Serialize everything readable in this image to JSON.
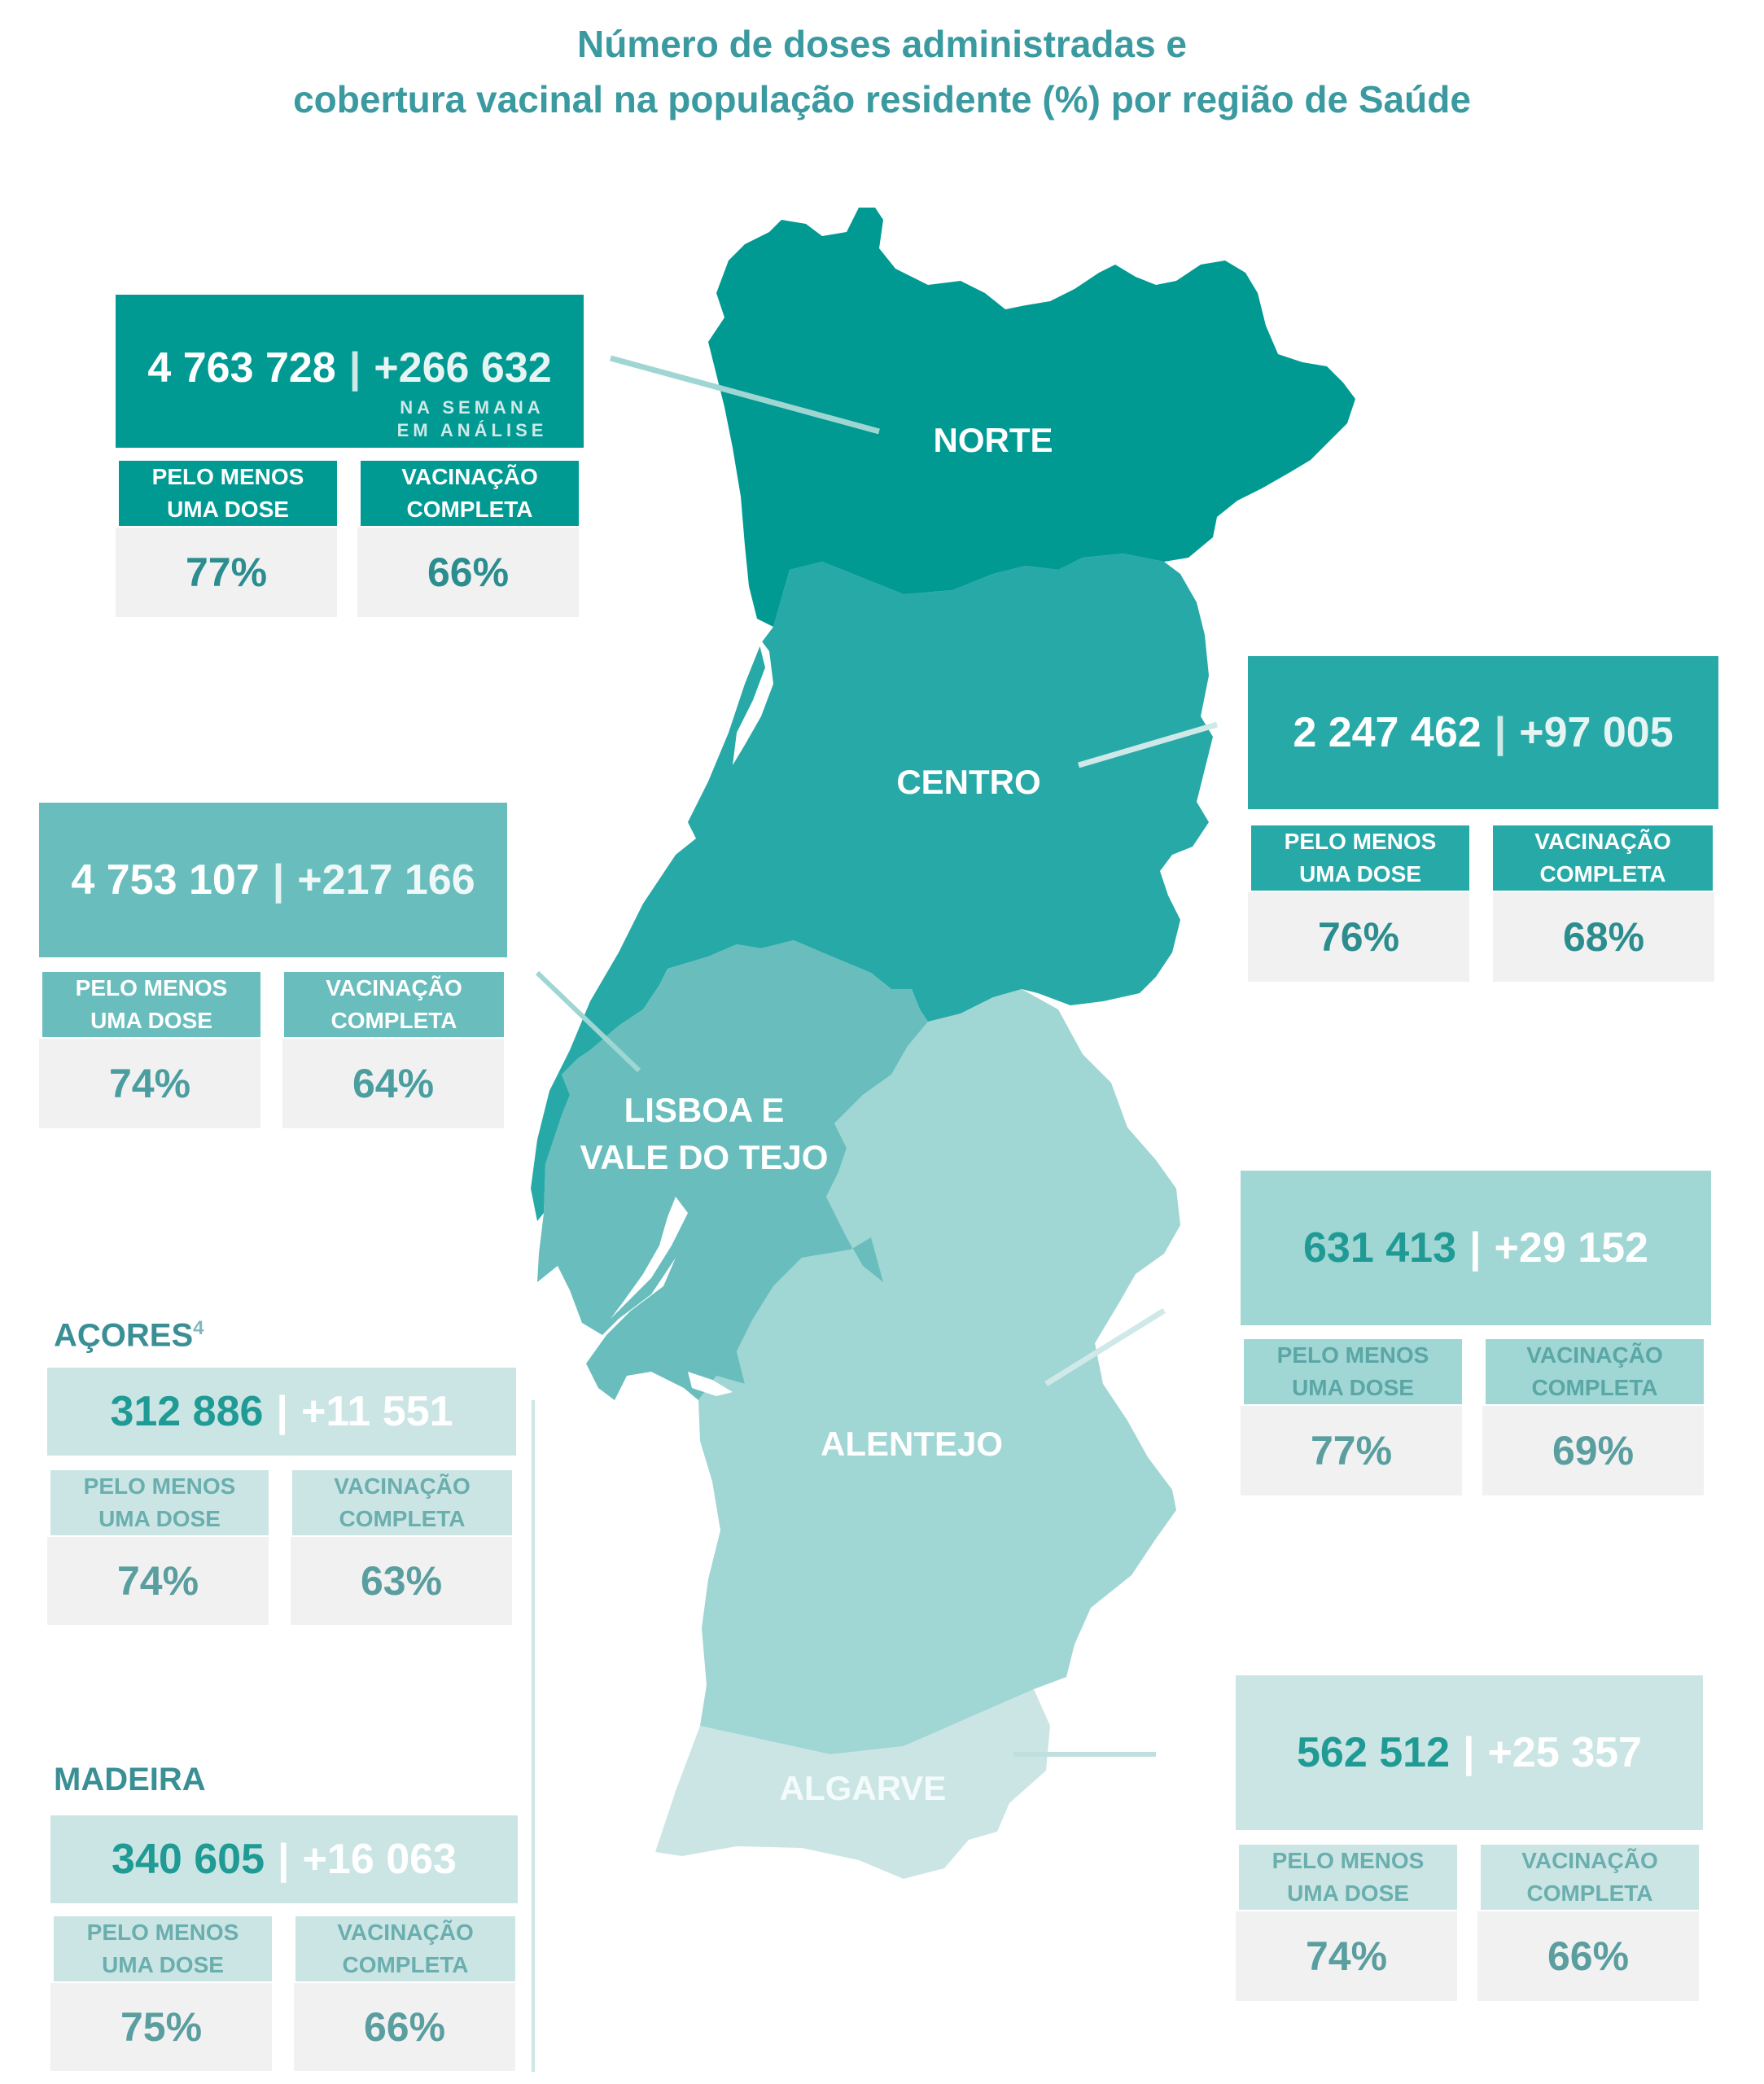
{
  "title": {
    "line1": "Número de doses administradas e",
    "line2": "cobertura vacinal na população residente (%) por região de Saúde"
  },
  "labels": {
    "at_least_one_dose_1": "PELO MENOS",
    "at_least_one_dose_2": "UMA DOSE",
    "complete_1": "VACINAÇÃO",
    "complete_2": "COMPLETA",
    "week_1": "NA SEMANA",
    "week_2": "EM ANÁLISE",
    "separator": "|"
  },
  "colors": {
    "norte": "#009a93",
    "centro": "#27a9a8",
    "lvt": "#69bebd",
    "alentejo": "#a0d6d4",
    "algarve": "#cbe5e5"
  },
  "regions": {
    "norte": {
      "name": "NORTE",
      "total": "4 763 728",
      "delta": "+266 632",
      "one_dose": "77%",
      "complete": "66%"
    },
    "centro": {
      "name": "CENTRO",
      "total": "2 247 462",
      "delta": "+97 005",
      "one_dose": "76%",
      "complete": "68%"
    },
    "lvt": {
      "name_1": "LISBOA E",
      "name_2": "VALE DO TEJO",
      "total": "4 753 107",
      "delta": "+217 166",
      "one_dose": "74%",
      "complete": "64%"
    },
    "alentejo": {
      "name": "ALENTEJO",
      "total": "631 413",
      "delta": "+29 152",
      "one_dose": "77%",
      "complete": "69%"
    },
    "algarve": {
      "name": "ALGARVE",
      "total": "562 512",
      "delta": "+25 357",
      "one_dose": "74%",
      "complete": "66%"
    },
    "acores": {
      "name": "AÇORES",
      "footnote": "4",
      "total": "312 886",
      "delta": "+11 551",
      "one_dose": "74%",
      "complete": "63%"
    },
    "madeira": {
      "name": "MADEIRA",
      "total": "340 605",
      "delta": "+16 063",
      "one_dose": "75%",
      "complete": "66%"
    }
  }
}
